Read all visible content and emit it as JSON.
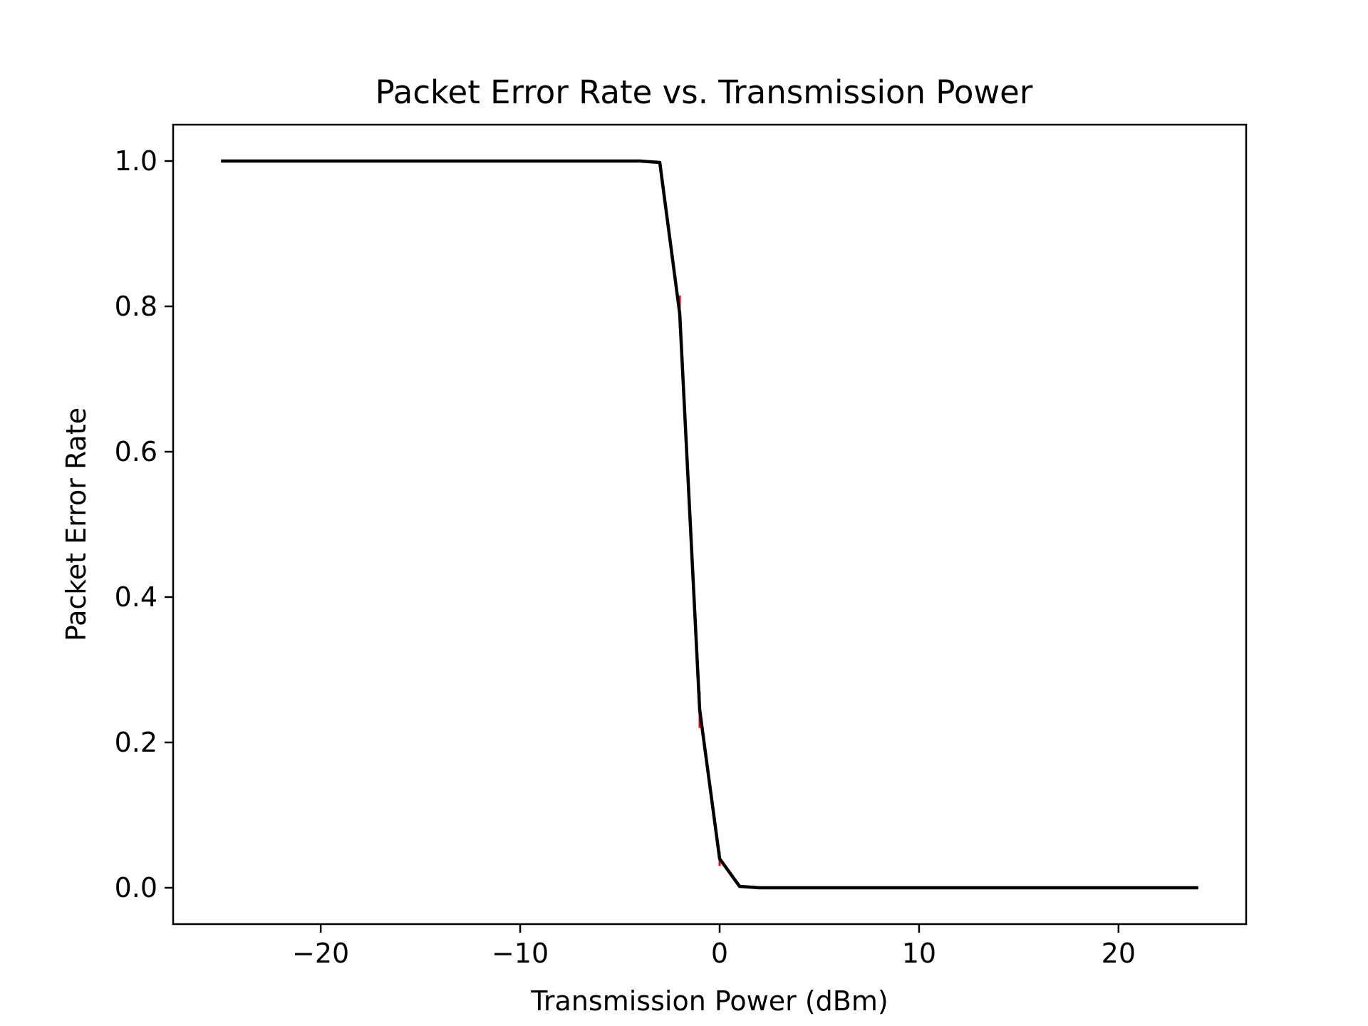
{
  "chart_data": {
    "type": "line",
    "title": "Packet Error Rate vs. Transmission Power",
    "xlabel": "Transmission Power (dBm)",
    "ylabel": "Packet Error Rate",
    "xlim": [
      -27.4,
      26.4
    ],
    "ylim": [
      -0.05,
      1.05
    ],
    "grid": false,
    "legend": "none",
    "x_ticks": [
      -20,
      -10,
      0,
      10,
      20
    ],
    "x_tick_labels": [
      "−20",
      "−10",
      "0",
      "10",
      "20"
    ],
    "y_ticks": [
      0.0,
      0.2,
      0.4,
      0.6,
      0.8,
      1.0
    ],
    "y_tick_labels": [
      "0.0",
      "0.2",
      "0.4",
      "0.6",
      "0.8",
      "1.0"
    ],
    "series": [
      {
        "color": "#000000",
        "x": [
          -25,
          -24,
          -23,
          -22,
          -21,
          -20,
          -19,
          -18,
          -17,
          -16,
          -15,
          -14,
          -13,
          -12,
          -11,
          -10,
          -9,
          -8,
          -7,
          -6,
          -5,
          -4,
          -3,
          -2,
          -1,
          0,
          1,
          2,
          3,
          4,
          5,
          6,
          7,
          8,
          9,
          10,
          11,
          12,
          13,
          14,
          15,
          16,
          17,
          18,
          19,
          20,
          21,
          22,
          23,
          24
        ],
        "y": [
          1.0,
          1.0,
          1.0,
          1.0,
          1.0,
          1.0,
          1.0,
          1.0,
          1.0,
          1.0,
          1.0,
          1.0,
          1.0,
          1.0,
          1.0,
          1.0,
          1.0,
          1.0,
          1.0,
          1.0,
          1.0,
          1.0,
          0.998,
          0.79,
          0.245,
          0.04,
          0.002,
          0.0,
          0.0,
          0.0,
          0.0,
          0.0,
          0.0,
          0.0,
          0.0,
          0.0,
          0.0,
          0.0,
          0.0,
          0.0,
          0.0,
          0.0,
          0.0,
          0.0,
          0.0,
          0.0,
          0.0,
          0.0,
          0.0,
          0.0
        ]
      }
    ],
    "error_bars": {
      "color": "#ff0000",
      "points": [
        {
          "x": -2,
          "low": 0.77,
          "high": 0.815
        },
        {
          "x": -1,
          "low": 0.22,
          "high": 0.27
        },
        {
          "x": 0,
          "low": 0.03,
          "high": 0.05
        }
      ]
    }
  }
}
